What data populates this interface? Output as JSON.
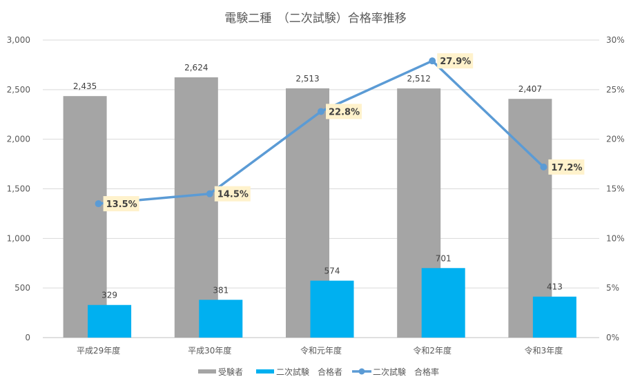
{
  "chart_data": {
    "type": "bar",
    "title": "電験二種　（二次試験）合格率推移",
    "categories": [
      "平成29年度",
      "平成30年度",
      "令和元年度",
      "令和2年度",
      "令和3年度"
    ],
    "series": [
      {
        "name": "受験者",
        "type": "bar",
        "axis": "left",
        "color": "#a5a5a5",
        "values": [
          2435,
          2624,
          2513,
          2512,
          2407
        ],
        "labels": [
          "2,435",
          "2,624",
          "2,513",
          "2,512",
          "2,407"
        ]
      },
      {
        "name": "二次試験 合格者",
        "type": "bar",
        "axis": "left",
        "color": "#00b0f0",
        "values": [
          329,
          381,
          574,
          701,
          413
        ],
        "labels": [
          "329",
          "381",
          "574",
          "701",
          "413"
        ]
      },
      {
        "name": "二次試験 合格率",
        "type": "line",
        "axis": "right",
        "color": "#5b9bd5",
        "values": [
          13.5,
          14.5,
          22.8,
          27.9,
          17.2
        ],
        "labels": [
          "13.5%",
          "14.5%",
          "22.8%",
          "27.9%",
          "17.2%"
        ]
      }
    ],
    "ylim": [
      0,
      3000
    ],
    "y_ticks": [
      "0",
      "500",
      "1,000",
      "1,500",
      "2,000",
      "2,500",
      "3,000"
    ],
    "y2lim": [
      0,
      30
    ],
    "y2_ticks": [
      "0%",
      "5%",
      "10%",
      "15%",
      "20%",
      "25%",
      "30%"
    ],
    "grid": true,
    "legend_position": "bottom",
    "legend": [
      "受験者",
      "二次試験　合格者",
      "二次試験　合格率"
    ]
  }
}
